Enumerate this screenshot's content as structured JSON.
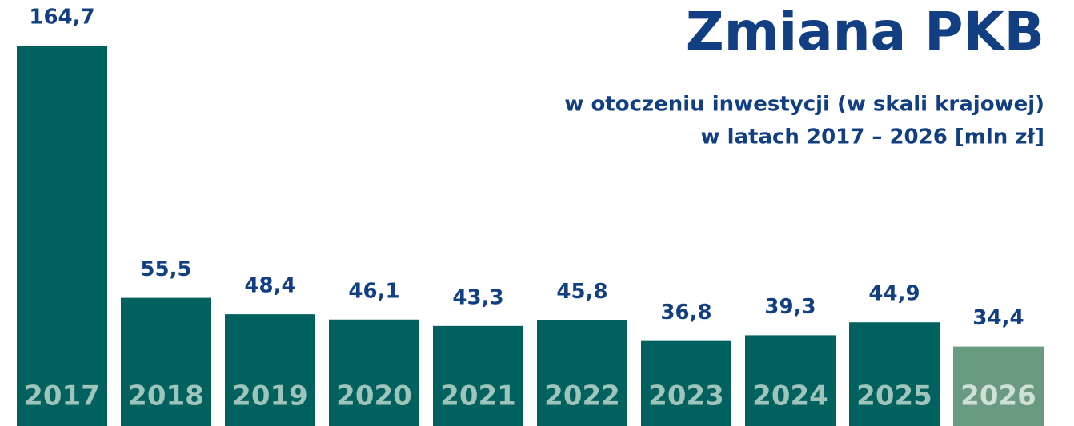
{
  "chart_data": {
    "type": "bar",
    "title": "Zmiana PKB",
    "subtitle": [
      "w otoczeniu inwestycji (w skali krajowej)",
      "w latach 2017 – 2026 [mln zł]"
    ],
    "categories": [
      "2017",
      "2018",
      "2019",
      "2020",
      "2021",
      "2022",
      "2023",
      "2024",
      "2025",
      "2026"
    ],
    "values": [
      164.7,
      55.5,
      48.4,
      46.1,
      43.3,
      45.8,
      36.8,
      39.3,
      44.9,
      34.4
    ],
    "value_labels": [
      "164,7",
      "55,5",
      "48,4",
      "46,1",
      "43,3",
      "45,8",
      "36,8",
      "39,3",
      "44,9",
      "34,4"
    ],
    "colors": [
      "#00615f",
      "#00615f",
      "#00615f",
      "#00615f",
      "#00615f",
      "#00615f",
      "#00615f",
      "#00615f",
      "#00615f",
      "#6a9a80"
    ],
    "label_colors": [
      "#9fc4bc",
      "#9fc4bc",
      "#9fc4bc",
      "#9fc4bc",
      "#9fc4bc",
      "#9fc4bc",
      "#9fc4bc",
      "#9fc4bc",
      "#9fc4bc",
      "#cfe0d4"
    ]
  }
}
